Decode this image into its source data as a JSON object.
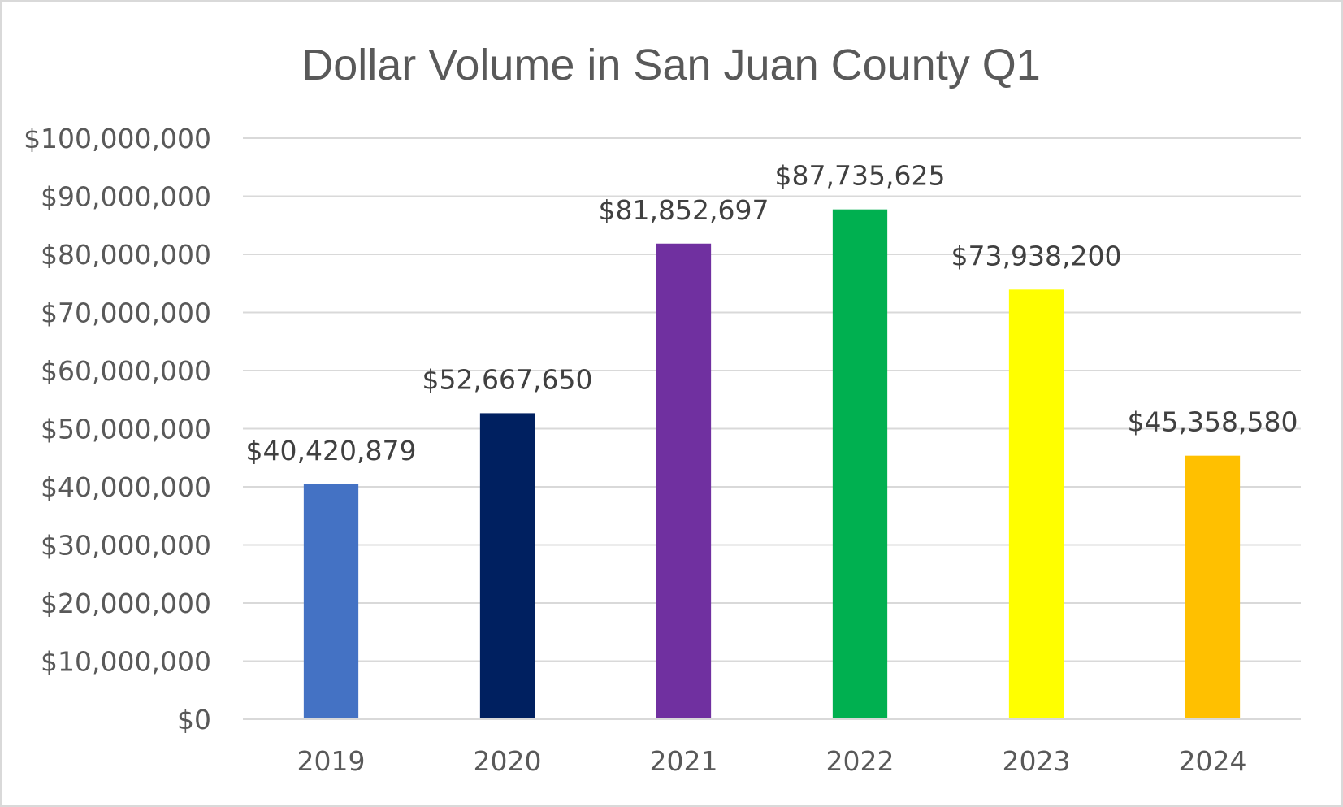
{
  "chart_data": {
    "type": "bar",
    "title": "Dollar Volume in San Juan County Q1",
    "xlabel": "",
    "ylabel": "",
    "categories": [
      "2019",
      "2020",
      "2021",
      "2022",
      "2023",
      "2024"
    ],
    "values": [
      40420879,
      52667650,
      81852697,
      87735625,
      73938200,
      45358580
    ],
    "data_labels": [
      "$40,420,879",
      "$52,667,650",
      "$81,852,697",
      "$87,735,625",
      "$73,938,200",
      "$45,358,580"
    ],
    "colors": [
      "#4472C4",
      "#002060",
      "#7030A0",
      "#00B050",
      "#FFFF00",
      "#FFC000"
    ],
    "ylim": [
      0,
      100000000
    ],
    "yticks": [
      0,
      10000000,
      20000000,
      30000000,
      40000000,
      50000000,
      60000000,
      70000000,
      80000000,
      90000000,
      100000000
    ],
    "ytick_labels": [
      "$0",
      "$10,000,000",
      "$20,000,000",
      "$30,000,000",
      "$40,000,000",
      "$50,000,000",
      "$60,000,000",
      "$70,000,000",
      "$80,000,000",
      "$90,000,000",
      "$100,000,000"
    ],
    "grid": true,
    "legend": "none"
  }
}
